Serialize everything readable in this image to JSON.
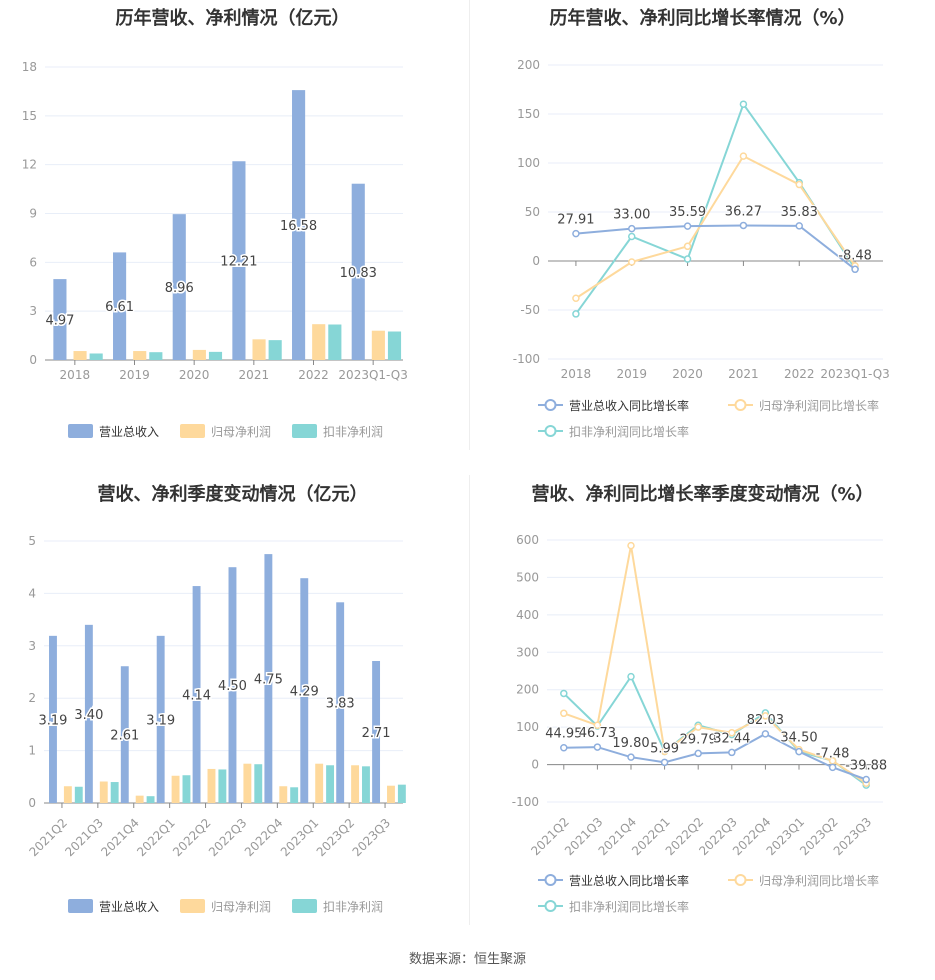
{
  "footer": "数据来源：恒生聚源",
  "colors": {
    "revenue": "#8eaedd",
    "net": "#fed99c",
    "deducted": "#86d6d6",
    "axis": "#999",
    "grid": "#e8eef8"
  },
  "chart_data": [
    {
      "type": "bar",
      "title": "历年营收、净利情况（亿元）",
      "categories": [
        "2018",
        "2019",
        "2020",
        "2021",
        "2022",
        "2023Q1-Q3"
      ],
      "ylim": [
        0,
        18
      ],
      "yticks": [
        0,
        3,
        6,
        9,
        12,
        15,
        18
      ],
      "series": [
        {
          "name": "营业总收入",
          "values": [
            4.97,
            6.61,
            8.96,
            12.21,
            16.58,
            10.83
          ],
          "labels": [
            "4.97",
            "6.61",
            "8.96",
            "12.21",
            "16.58",
            "10.83"
          ]
        },
        {
          "name": "归母净利润",
          "values": [
            0.55,
            0.55,
            0.62,
            1.27,
            2.2,
            1.8
          ]
        },
        {
          "name": "扣非净利润",
          "values": [
            0.4,
            0.48,
            0.5,
            1.22,
            2.18,
            1.75
          ]
        }
      ]
    },
    {
      "type": "line",
      "title": "历年营收、净利同比增长率情况（%）",
      "categories": [
        "2018",
        "2019",
        "2020",
        "2021",
        "2022",
        "2023Q1-Q3"
      ],
      "ylim": [
        -100,
        200
      ],
      "yticks": [
        -100,
        -50,
        0,
        50,
        100,
        150,
        200
      ],
      "series": [
        {
          "name": "营业总收入同比增长率",
          "values": [
            27.91,
            33.0,
            35.59,
            36.27,
            35.83,
            -8.48
          ],
          "labels": [
            "27.91",
            "33.00",
            "35.59",
            "36.27",
            "35.83",
            "-8.48"
          ]
        },
        {
          "name": "归母净利润同比增长率",
          "values": [
            -38,
            -1,
            15,
            107,
            78,
            -5
          ]
        },
        {
          "name": "扣非净利润同比增长率",
          "values": [
            -54,
            25,
            2,
            160,
            80,
            -8
          ]
        }
      ]
    },
    {
      "type": "bar",
      "title": "营收、净利季度变动情况（亿元）",
      "categories": [
        "2021Q2",
        "2021Q3",
        "2021Q4",
        "2022Q1",
        "2022Q2",
        "2022Q3",
        "2022Q4",
        "2023Q1",
        "2023Q2",
        "2023Q3"
      ],
      "ylim": [
        0,
        5
      ],
      "yticks": [
        0,
        1,
        2,
        3,
        4,
        5
      ],
      "series": [
        {
          "name": "营业总收入",
          "values": [
            3.19,
            3.4,
            2.61,
            3.19,
            4.14,
            4.5,
            4.75,
            4.29,
            3.83,
            2.71
          ],
          "labels": [
            "3.19",
            "3.40",
            "2.61",
            "3.19",
            "4.14",
            "4.50",
            "4.75",
            "4.29",
            "3.83",
            "2.71"
          ]
        },
        {
          "name": "归母净利润",
          "values": [
            0.32,
            0.41,
            0.14,
            0.52,
            0.65,
            0.75,
            0.32,
            0.75,
            0.72,
            0.33
          ]
        },
        {
          "name": "扣非净利润",
          "values": [
            0.31,
            0.4,
            0.13,
            0.53,
            0.64,
            0.74,
            0.3,
            0.72,
            0.7,
            0.35
          ]
        }
      ]
    },
    {
      "type": "line",
      "title": "营收、净利同比增长率季度变动情况（%）",
      "categories": [
        "2021Q2",
        "2021Q3",
        "2021Q4",
        "2022Q1",
        "2022Q2",
        "2022Q3",
        "2022Q4",
        "2023Q1",
        "2023Q2",
        "2023Q3"
      ],
      "ylim": [
        -100,
        600
      ],
      "yticks": [
        -100,
        0,
        100,
        200,
        300,
        400,
        500,
        600
      ],
      "series": [
        {
          "name": "营业总收入同比增长率",
          "values": [
            44.95,
            46.73,
            19.8,
            5.99,
            29.79,
            32.44,
            82.03,
            34.5,
            -7.48,
            -39.88
          ],
          "labels": [
            "44.95",
            "46.73",
            "19.80",
            "5.99",
            "29.79",
            "32.44",
            "82.03",
            "34.50",
            "-7.48",
            "-39.88"
          ]
        },
        {
          "name": "归母净利润同比增长率",
          "values": [
            137,
            105,
            585,
            35,
            100,
            85,
            130,
            40,
            10,
            -50
          ]
        },
        {
          "name": "扣非净利润同比增长率",
          "values": [
            190,
            103,
            235,
            35,
            105,
            80,
            138,
            35,
            10,
            -55
          ]
        }
      ]
    }
  ]
}
